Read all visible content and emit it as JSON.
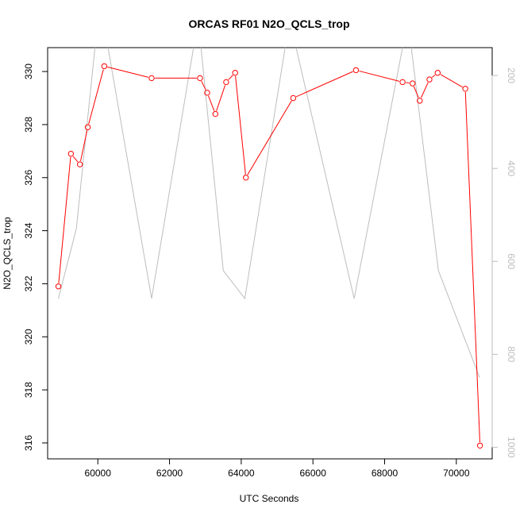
{
  "chart_data": {
    "type": "line",
    "title": "ORCAS RF01 N2O_QCLS_trop",
    "xlabel": "UTC Seconds",
    "ylabel": "N2O_QCLS_trop",
    "xlim": [
      58600,
      71000
    ],
    "ylim": [
      315.4,
      330.9
    ],
    "xticks": [
      60000,
      62000,
      64000,
      66000,
      68000,
      70000
    ],
    "yticks": [
      316,
      318,
      320,
      322,
      324,
      326,
      328,
      330
    ],
    "y2lim": [
      1025,
      140
    ],
    "y2ticks": [
      200,
      400,
      600,
      800,
      1000
    ],
    "grid": false,
    "series": [
      {
        "color": "#ff0000",
        "marker": "open-circle",
        "axis": "left",
        "x": [
          58900,
          59250,
          59500,
          59720,
          60180,
          61500,
          62850,
          63050,
          63280,
          63580,
          63830,
          64130,
          65450,
          67200,
          68500,
          68780,
          68980,
          69250,
          69480,
          70250,
          70660
        ],
        "y": [
          321.9,
          326.9,
          326.5,
          327.9,
          330.2,
          329.75,
          329.75,
          329.2,
          328.4,
          329.6,
          329.95,
          326.0,
          329.0,
          330.05,
          329.6,
          329.55,
          328.9,
          329.7,
          329.95,
          329.35,
          315.9
        ]
      },
      {
        "color": "#bdbdbd",
        "marker": "none",
        "axis": "right",
        "x": [
          58900,
          59400,
          60000,
          60150,
          61500,
          62800,
          63500,
          64100,
          65350,
          67150,
          68650,
          69500,
          70650
        ],
        "y": [
          680,
          530,
          80,
          80,
          680,
          80,
          620,
          680,
          80,
          680,
          80,
          620,
          850
        ]
      }
    ]
  }
}
